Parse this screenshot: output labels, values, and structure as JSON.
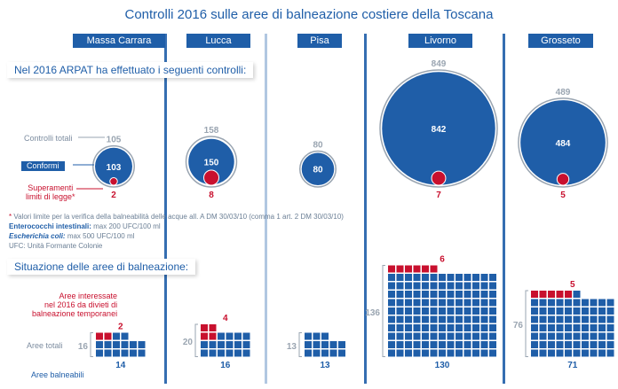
{
  "title": "Controlli 2016 sulle aree di balneazione costiere della Toscana",
  "colors": {
    "blue": "#1f5ea8",
    "red": "#c8102e",
    "gray": "#9aa5b1"
  },
  "sections": {
    "controls": "Nel 2016 ARPAT ha effettuato i seguenti controlli:",
    "areas": "Situazione delle aree di balneazione:"
  },
  "legend": {
    "controlli_totali": "Controlli totali",
    "conformi": "Conformi",
    "superamenti": [
      "Superamenti",
      "limiti di legge*"
    ],
    "divieti": [
      "Aree interessate",
      "nel 2016 da divieti di",
      "balneazione temporanei"
    ],
    "aree_totali": "Aree totali",
    "aree_balneabili": "Aree balneabili"
  },
  "notes": {
    "star": "*",
    "line1": " Valori limite per la verifica della balneabilità delle acque all. A DM 30/03/10 (comma 1 art. 2 DM 30/03/10)",
    "line2_bold": "Enterococchi intestinali:",
    "line2_rest": " max 200 UFC/100 ml",
    "line3_bold": "Escherichia coli:",
    "line3_rest": " max 500 UFC/100 ml",
    "line4": "UFC: Unità Formante Colonie"
  },
  "chart_data": {
    "type": "bubble and unit chart",
    "categories": [
      "Massa Carrara",
      "Lucca",
      "Pisa",
      "Livorno",
      "Grosseto"
    ],
    "controls": {
      "totali": [
        105,
        158,
        80,
        849,
        489
      ],
      "conformi": [
        103,
        150,
        80,
        842,
        484
      ],
      "superamenti": [
        2,
        8,
        0,
        7,
        5
      ]
    },
    "areas": {
      "totali": [
        16,
        20,
        13,
        136,
        76
      ],
      "balneabili": [
        14,
        16,
        13,
        130,
        71
      ],
      "divieti": [
        2,
        4,
        0,
        6,
        5
      ]
    }
  }
}
